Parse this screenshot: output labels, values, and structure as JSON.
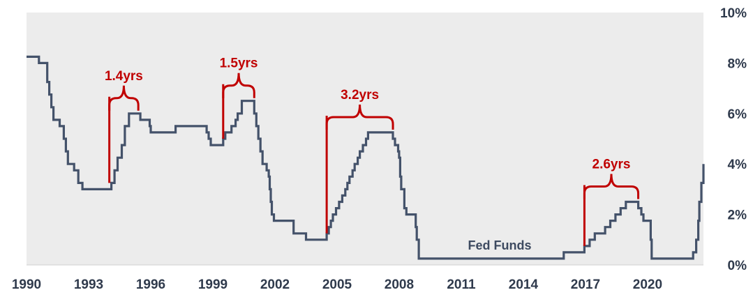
{
  "chart_data": {
    "type": "line",
    "title": "",
    "xlabel": "",
    "ylabel": "",
    "xlim": [
      1990,
      2022.7
    ],
    "ylim": [
      0,
      10
    ],
    "grid": false,
    "background_color": "#ececec",
    "line_color": "#44526a",
    "annotation_color": "#c00000",
    "x_ticks": [
      1990,
      1993,
      1996,
      1999,
      2002,
      2005,
      2008,
      2011,
      2014,
      2017,
      2020
    ],
    "x_tick_labels": [
      "1990",
      "1993",
      "1996",
      "1999",
      "2002",
      "2005",
      "2008",
      "2011",
      "2014",
      "2017",
      "2020"
    ],
    "y_ticks": [
      0,
      2,
      4,
      6,
      8,
      10
    ],
    "y_tick_labels": [
      "0%",
      "2%",
      "4%",
      "6%",
      "8%",
      "10%"
    ],
    "series": [
      {
        "name": "Fed Funds",
        "points": [
          [
            1990.0,
            8.25
          ],
          [
            1990.5,
            8.25
          ],
          [
            1990.6,
            8.0
          ],
          [
            1990.9,
            8.0
          ],
          [
            1991.0,
            7.25
          ],
          [
            1991.1,
            6.75
          ],
          [
            1991.2,
            6.25
          ],
          [
            1991.3,
            5.75
          ],
          [
            1991.6,
            5.5
          ],
          [
            1991.8,
            5.0
          ],
          [
            1991.9,
            4.5
          ],
          [
            1992.0,
            4.0
          ],
          [
            1992.3,
            3.75
          ],
          [
            1992.5,
            3.25
          ],
          [
            1992.7,
            3.0
          ],
          [
            1994.0,
            3.0
          ],
          [
            1994.1,
            3.25
          ],
          [
            1994.25,
            3.75
          ],
          [
            1994.4,
            4.25
          ],
          [
            1994.6,
            4.75
          ],
          [
            1994.75,
            5.5
          ],
          [
            1994.95,
            6.0
          ],
          [
            1995.5,
            5.75
          ],
          [
            1995.95,
            5.5
          ],
          [
            1996.0,
            5.25
          ],
          [
            1997.2,
            5.5
          ],
          [
            1998.7,
            5.25
          ],
          [
            1998.8,
            5.0
          ],
          [
            1998.9,
            4.75
          ],
          [
            1999.5,
            5.0
          ],
          [
            1999.6,
            5.25
          ],
          [
            1999.9,
            5.5
          ],
          [
            2000.1,
            5.75
          ],
          [
            2000.2,
            6.0
          ],
          [
            2000.4,
            6.5
          ],
          [
            2001.0,
            6.0
          ],
          [
            2001.1,
            5.5
          ],
          [
            2001.2,
            5.0
          ],
          [
            2001.3,
            4.5
          ],
          [
            2001.4,
            4.0
          ],
          [
            2001.6,
            3.75
          ],
          [
            2001.7,
            3.5
          ],
          [
            2001.75,
            3.0
          ],
          [
            2001.8,
            2.5
          ],
          [
            2001.85,
            2.0
          ],
          [
            2001.95,
            1.75
          ],
          [
            2002.9,
            1.25
          ],
          [
            2003.5,
            1.0
          ],
          [
            2004.5,
            1.25
          ],
          [
            2004.6,
            1.5
          ],
          [
            2004.7,
            1.75
          ],
          [
            2004.8,
            2.0
          ],
          [
            2004.95,
            2.25
          ],
          [
            2005.1,
            2.5
          ],
          [
            2005.25,
            2.75
          ],
          [
            2005.4,
            3.0
          ],
          [
            2005.5,
            3.25
          ],
          [
            2005.6,
            3.5
          ],
          [
            2005.75,
            3.75
          ],
          [
            2005.85,
            4.0
          ],
          [
            2006.0,
            4.25
          ],
          [
            2006.1,
            4.5
          ],
          [
            2006.25,
            4.75
          ],
          [
            2006.4,
            5.0
          ],
          [
            2006.5,
            5.25
          ],
          [
            2007.7,
            5.0
          ],
          [
            2007.8,
            4.75
          ],
          [
            2007.95,
            4.5
          ],
          [
            2008.0,
            4.25
          ],
          [
            2008.05,
            3.5
          ],
          [
            2008.1,
            3.0
          ],
          [
            2008.25,
            2.25
          ],
          [
            2008.35,
            2.0
          ],
          [
            2008.8,
            1.5
          ],
          [
            2008.85,
            1.0
          ],
          [
            2008.95,
            0.25
          ],
          [
            2015.95,
            0.5
          ],
          [
            2016.95,
            0.75
          ],
          [
            2017.2,
            1.0
          ],
          [
            2017.45,
            1.25
          ],
          [
            2017.95,
            1.5
          ],
          [
            2018.2,
            1.75
          ],
          [
            2018.45,
            2.0
          ],
          [
            2018.7,
            2.25
          ],
          [
            2018.95,
            2.5
          ],
          [
            2019.55,
            2.25
          ],
          [
            2019.7,
            2.0
          ],
          [
            2019.8,
            1.75
          ],
          [
            2020.15,
            1.0
          ],
          [
            2020.2,
            0.25
          ],
          [
            2022.2,
            0.5
          ],
          [
            2022.35,
            1.0
          ],
          [
            2022.45,
            1.75
          ],
          [
            2022.5,
            2.5
          ],
          [
            2022.6,
            3.25
          ],
          [
            2022.7,
            4.0
          ]
        ]
      }
    ],
    "annotations": [
      {
        "label": "1.4yrs",
        "start": 1994.0,
        "end": 1995.4,
        "start_value": 3.25,
        "end_value": 6.0
      },
      {
        "label": "1.5yrs",
        "start": 1999.5,
        "end": 2001.0,
        "start_value": 5.0,
        "end_value": 6.5
      },
      {
        "label": "3.2yrs",
        "start": 2004.5,
        "end": 2007.7,
        "start_value": 1.25,
        "end_value": 5.25
      },
      {
        "label": "2.6yrs",
        "start": 2016.95,
        "end": 2019.55,
        "start_value": 0.75,
        "end_value": 2.5
      }
    ]
  }
}
